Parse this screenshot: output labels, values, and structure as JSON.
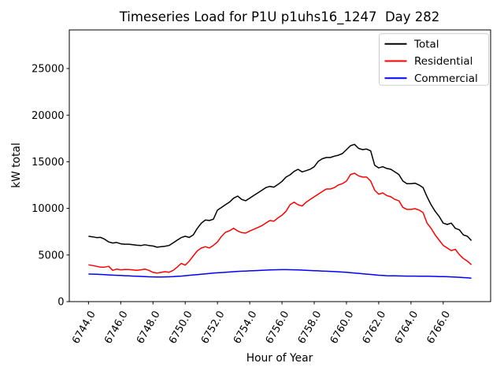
{
  "chart_data": {
    "type": "line",
    "title": "Timeseries Load for P1U p1uhs16_1247  Day 282",
    "xlabel": "Hour of Year",
    "ylabel": "kW total",
    "xlim": [
      6742.81,
      6768.94
    ],
    "ylim": [
      0,
      29140
    ],
    "grid": false,
    "legend_position": "upper right",
    "xticks": [
      6744,
      6746,
      6748,
      6750,
      6752,
      6754,
      6756,
      6758,
      6760,
      6762,
      6764,
      6766
    ],
    "xtick_labels": [
      "6744.0",
      "6746.0",
      "6748.0",
      "6750.0",
      "6752.0",
      "6754.0",
      "6756.0",
      "6758.0",
      "6760.0",
      "6762.0",
      "6764.0",
      "6766.0"
    ],
    "yticks": [
      0,
      5000,
      10000,
      15000,
      20000,
      25000
    ],
    "ytick_labels": [
      "0",
      "5000",
      "10000",
      "15000",
      "20000",
      "25000"
    ],
    "x": [
      6744.0,
      6744.25,
      6744.5,
      6744.75,
      6745.0,
      6745.25,
      6745.5,
      6745.75,
      6746.0,
      6746.25,
      6746.5,
      6746.75,
      6747.0,
      6747.25,
      6747.5,
      6747.75,
      6748.0,
      6748.25,
      6748.5,
      6748.75,
      6749.0,
      6749.25,
      6749.5,
      6749.75,
      6750.0,
      6750.25,
      6750.5,
      6750.75,
      6751.0,
      6751.25,
      6751.5,
      6751.75,
      6752.0,
      6752.25,
      6752.5,
      6752.75,
      6753.0,
      6753.25,
      6753.5,
      6753.75,
      6754.0,
      6754.25,
      6754.5,
      6754.75,
      6755.0,
      6755.25,
      6755.5,
      6755.75,
      6756.0,
      6756.25,
      6756.5,
      6756.75,
      6757.0,
      6757.25,
      6757.5,
      6757.75,
      6758.0,
      6758.25,
      6758.5,
      6758.75,
      6759.0,
      6759.25,
      6759.5,
      6759.75,
      6760.0,
      6760.25,
      6760.5,
      6760.75,
      6761.0,
      6761.25,
      6761.5,
      6761.75,
      6762.0,
      6762.25,
      6762.5,
      6762.75,
      6763.0,
      6763.25,
      6763.5,
      6763.75,
      6764.0,
      6764.25,
      6764.5,
      6764.75,
      6765.0,
      6765.25,
      6765.5,
      6765.75,
      6766.0,
      6766.25,
      6766.5,
      6766.75,
      6767.0,
      6767.25,
      6767.5,
      6767.75
    ],
    "series": [
      {
        "name": "Total",
        "color": "#000000",
        "values": [
          7010,
          6950,
          6870,
          6890,
          6700,
          6400,
          6280,
          6340,
          6200,
          6160,
          6160,
          6100,
          6050,
          6010,
          6100,
          6010,
          5960,
          5840,
          5890,
          5940,
          6020,
          6300,
          6590,
          6870,
          7010,
          6880,
          7150,
          7860,
          8420,
          8750,
          8700,
          8840,
          9820,
          10100,
          10400,
          10680,
          11090,
          11320,
          10960,
          10820,
          11100,
          11380,
          11660,
          11940,
          12230,
          12360,
          12280,
          12560,
          12900,
          13350,
          13600,
          13960,
          14190,
          13910,
          14050,
          14200,
          14470,
          15040,
          15320,
          15460,
          15460,
          15600,
          15700,
          15880,
          16300,
          16720,
          16870,
          16440,
          16300,
          16360,
          16170,
          14620,
          14340,
          14470,
          14280,
          14190,
          13910,
          13630,
          12930,
          12650,
          12650,
          12700,
          12510,
          12230,
          11240,
          10390,
          9690,
          9130,
          8420,
          8280,
          8420,
          7860,
          7700,
          7150,
          7010,
          6550
        ]
      },
      {
        "name": "Residential",
        "color": "#ff0000",
        "values": [
          3950,
          3870,
          3780,
          3700,
          3700,
          3780,
          3350,
          3490,
          3410,
          3440,
          3440,
          3400,
          3350,
          3410,
          3490,
          3350,
          3130,
          3070,
          3130,
          3210,
          3150,
          3350,
          3700,
          4100,
          3910,
          4340,
          4900,
          5450,
          5750,
          5890,
          5750,
          6030,
          6400,
          7000,
          7440,
          7600,
          7860,
          7580,
          7400,
          7350,
          7580,
          7750,
          7950,
          8140,
          8420,
          8700,
          8620,
          8980,
          9270,
          9690,
          10390,
          10670,
          10390,
          10250,
          10670,
          10960,
          11240,
          11520,
          11800,
          12080,
          12080,
          12230,
          12510,
          12650,
          12930,
          13630,
          13770,
          13490,
          13350,
          13350,
          12930,
          11940,
          11520,
          11660,
          11380,
          11240,
          10960,
          10820,
          10110,
          9890,
          9890,
          9970,
          9820,
          9550,
          8420,
          7860,
          7150,
          6590,
          6030,
          5750,
          5470,
          5610,
          5040,
          4620,
          4340,
          3950
        ]
      },
      {
        "name": "Commercial",
        "color": "#0000ff",
        "values": [
          2960,
          2950,
          2930,
          2910,
          2890,
          2860,
          2840,
          2820,
          2800,
          2780,
          2760,
          2740,
          2720,
          2700,
          2680,
          2660,
          2650,
          2645,
          2645,
          2650,
          2660,
          2680,
          2710,
          2740,
          2780,
          2820,
          2860,
          2900,
          2940,
          2980,
          3020,
          3060,
          3090,
          3120,
          3150,
          3180,
          3210,
          3240,
          3260,
          3280,
          3300,
          3320,
          3340,
          3360,
          3380,
          3400,
          3410,
          3420,
          3430,
          3430,
          3420,
          3410,
          3400,
          3380,
          3360,
          3340,
          3320,
          3300,
          3280,
          3260,
          3240,
          3220,
          3200,
          3170,
          3140,
          3110,
          3070,
          3030,
          2990,
          2950,
          2910,
          2870,
          2830,
          2800,
          2780,
          2770,
          2760,
          2750,
          2745,
          2740,
          2740,
          2735,
          2730,
          2725,
          2720,
          2710,
          2700,
          2690,
          2680,
          2665,
          2650,
          2630,
          2610,
          2580,
          2550,
          2520
        ]
      }
    ]
  }
}
